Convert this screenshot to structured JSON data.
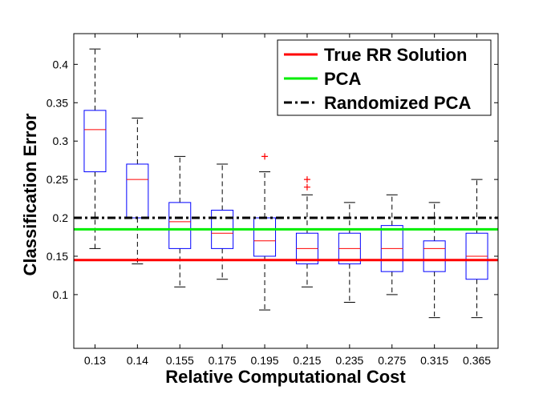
{
  "chart_data": {
    "type": "boxplot",
    "xlabel": "Relative Computational Cost",
    "ylabel": "Classification Error",
    "ylim": [
      0.03,
      0.44
    ],
    "yticks": [
      0.1,
      0.15,
      0.2,
      0.25,
      0.3,
      0.35,
      0.4
    ],
    "ytick_labels": [
      "0.1",
      "0.15",
      "0.2",
      "0.25",
      "0.3",
      "0.35",
      "0.4"
    ],
    "categories": [
      "0.13",
      "0.14",
      "0.155",
      "0.175",
      "0.195",
      "0.215",
      "0.235",
      "0.275",
      "0.315",
      "0.365"
    ],
    "boxes": [
      {
        "whisker_low": 0.16,
        "q1": 0.26,
        "median": 0.315,
        "q3": 0.34,
        "whisker_high": 0.42,
        "outliers": []
      },
      {
        "whisker_low": 0.14,
        "q1": 0.2,
        "median": 0.25,
        "q3": 0.27,
        "whisker_high": 0.33,
        "outliers": []
      },
      {
        "whisker_low": 0.11,
        "q1": 0.16,
        "median": 0.195,
        "q3": 0.22,
        "whisker_high": 0.28,
        "outliers": []
      },
      {
        "whisker_low": 0.12,
        "q1": 0.16,
        "median": 0.18,
        "q3": 0.21,
        "whisker_high": 0.27,
        "outliers": []
      },
      {
        "whisker_low": 0.08,
        "q1": 0.15,
        "median": 0.17,
        "q3": 0.2,
        "whisker_high": 0.26,
        "outliers": [
          0.28
        ]
      },
      {
        "whisker_low": 0.11,
        "q1": 0.14,
        "median": 0.16,
        "q3": 0.18,
        "whisker_high": 0.23,
        "outliers": [
          0.24,
          0.25
        ]
      },
      {
        "whisker_low": 0.09,
        "q1": 0.14,
        "median": 0.16,
        "q3": 0.18,
        "whisker_high": 0.22,
        "outliers": []
      },
      {
        "whisker_low": 0.1,
        "q1": 0.13,
        "median": 0.16,
        "q3": 0.19,
        "whisker_high": 0.23,
        "outliers": []
      },
      {
        "whisker_low": 0.07,
        "q1": 0.13,
        "median": 0.16,
        "q3": 0.17,
        "whisker_high": 0.22,
        "outliers": []
      },
      {
        "whisker_low": 0.07,
        "q1": 0.12,
        "median": 0.15,
        "q3": 0.18,
        "whisker_high": 0.25,
        "outliers": []
      }
    ],
    "reference_lines": [
      {
        "name": "True RR Solution",
        "value": 0.145,
        "color": "#ff0000",
        "style": "solid"
      },
      {
        "name": "PCA",
        "value": 0.185,
        "color": "#00ee00",
        "style": "solid"
      },
      {
        "name": "Randomized PCA",
        "value": 0.2,
        "color": "#000000",
        "style": "dashdot"
      }
    ],
    "legend_position": "top-right",
    "box_color": "#0000ff",
    "median_color": "#ff0000",
    "whisker_color": "#000000",
    "outlier_color": "#ff0000"
  }
}
